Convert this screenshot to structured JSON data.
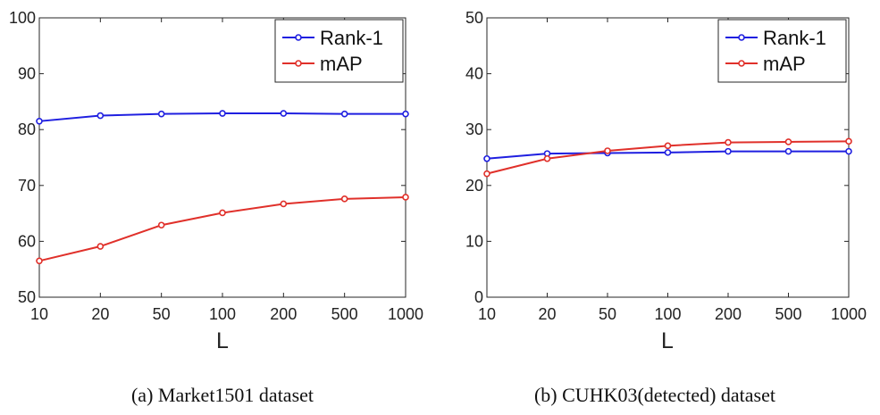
{
  "chart_data": [
    {
      "type": "line",
      "title": "",
      "caption": "(a) Market1501 dataset",
      "xlabel": "L",
      "ylabel": "",
      "categories": [
        "10",
        "20",
        "50",
        "100",
        "200",
        "500",
        "1000"
      ],
      "ylim": [
        50,
        100
      ],
      "yticks": [
        "50",
        "60",
        "70",
        "80",
        "90",
        "100"
      ],
      "grid": false,
      "legend_position": "top-right",
      "series": [
        {
          "name": "Rank-1",
          "color": "#1f1fe0",
          "values": [
            81.5,
            82.5,
            82.8,
            82.9,
            82.9,
            82.8,
            82.8
          ]
        },
        {
          "name": "mAP",
          "color": "#e0302a",
          "values": [
            56.5,
            59.1,
            62.9,
            65.1,
            66.7,
            67.6,
            67.9
          ]
        }
      ]
    },
    {
      "type": "line",
      "title": "",
      "caption": "(b) CUHK03(detected) dataset",
      "xlabel": "L",
      "ylabel": "",
      "categories": [
        "10",
        "20",
        "50",
        "100",
        "200",
        "500",
        "1000"
      ],
      "ylim": [
        0,
        50
      ],
      "yticks": [
        "0",
        "10",
        "20",
        "30",
        "40",
        "50"
      ],
      "grid": false,
      "legend_position": "top-right",
      "series": [
        {
          "name": "Rank-1",
          "color": "#1f1fe0",
          "values": [
            24.8,
            25.7,
            25.8,
            25.9,
            26.1,
            26.1,
            26.1
          ]
        },
        {
          "name": "mAP",
          "color": "#e0302a",
          "values": [
            22.1,
            24.8,
            26.2,
            27.1,
            27.7,
            27.8,
            27.9
          ]
        }
      ]
    }
  ]
}
